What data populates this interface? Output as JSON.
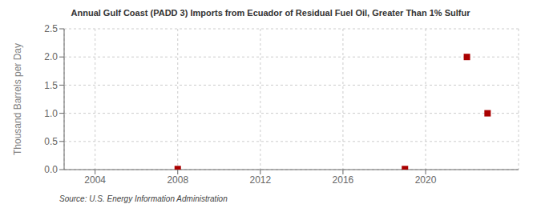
{
  "chart_data": {
    "type": "scatter",
    "title": "Annual Gulf Coast (PADD 3) Imports from Ecuador of Residual Fuel Oil, Greater Than 1% Sulfur",
    "ylabel": "Thousand Barrels per Day",
    "source": "Source: U.S. Energy Information Administration",
    "x": [
      2008,
      2019,
      2022,
      2023
    ],
    "values": [
      0.01,
      0.01,
      2.0,
      1.0
    ],
    "color": "#aa0000",
    "marker": "square",
    "grid": true,
    "xlim": [
      2002.5,
      2024.5
    ],
    "ylim": [
      0.0,
      2.5
    ],
    "xticks": [
      2004,
      2008,
      2012,
      2016,
      2020
    ],
    "yticks": [
      {
        "value": 0.0,
        "label": "0.0"
      },
      0.5,
      {
        "value": 1.0,
        "label": "1.0"
      },
      1.5,
      {
        "value": 2.0,
        "label": "2.0"
      },
      2.5
    ]
  }
}
